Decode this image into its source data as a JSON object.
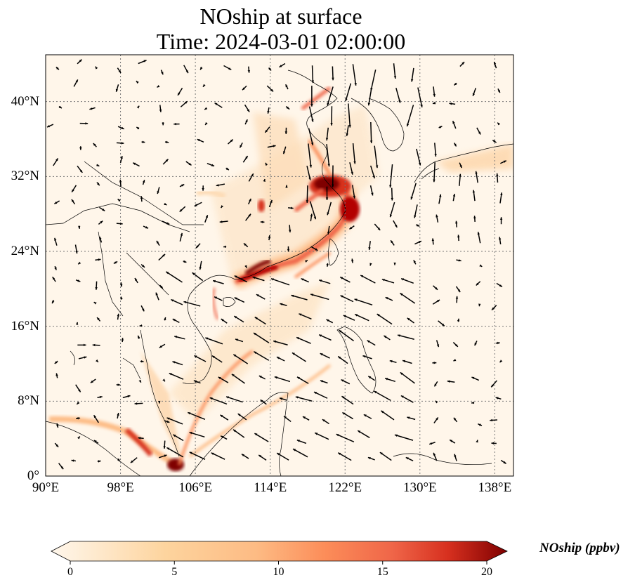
{
  "title": {
    "line1": "NOship at surface",
    "line2": "Time: 2024-03-01 02:00:00"
  },
  "map": {
    "lon_range": [
      90,
      140
    ],
    "lat_range": [
      0,
      45
    ],
    "lat_ticks": [
      {
        "value": 0,
        "label": "0°"
      },
      {
        "value": 8,
        "label": "8°N"
      },
      {
        "value": 16,
        "label": "16°N"
      },
      {
        "value": 24,
        "label": "24°N"
      },
      {
        "value": 32,
        "label": "32°N"
      },
      {
        "value": 40,
        "label": "40°N"
      }
    ],
    "lon_ticks": [
      {
        "value": 90,
        "label": "90°E"
      },
      {
        "value": 98,
        "label": "98°E"
      },
      {
        "value": 106,
        "label": "106°E"
      },
      {
        "value": 114,
        "label": "114°E"
      },
      {
        "value": 122,
        "label": "122°E"
      },
      {
        "value": 130,
        "label": "130°E"
      },
      {
        "value": 138,
        "label": "138°E"
      }
    ],
    "gridlines": true
  },
  "colorbar": {
    "label": "NOship (ppbv)",
    "min": 0,
    "max": 20,
    "ticks": [
      "0",
      "5",
      "10",
      "15",
      "20"
    ],
    "colormap": "OrRd",
    "extend": "both"
  },
  "colors": {
    "background_low": "#fff7ec",
    "mid": "#fdbb84",
    "high": "#d7301f",
    "max": "#7f0000"
  }
}
